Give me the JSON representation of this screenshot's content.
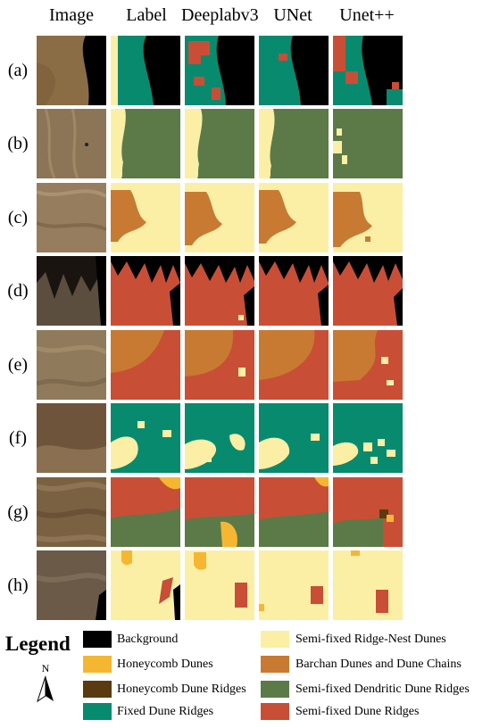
{
  "columns": [
    "Image",
    "Label",
    "Deeplabv3",
    "UNet",
    "Unet++"
  ],
  "rows": [
    "(a)",
    "(b)",
    "(c)",
    "(d)",
    "(e)",
    "(f)",
    "(g)",
    "(h)"
  ],
  "legend": {
    "title": "Legend",
    "north_label": "N",
    "items": [
      {
        "label": "Background",
        "color": "#000000"
      },
      {
        "label": "Honeycomb Dunes",
        "color": "#f5b731"
      },
      {
        "label": "Honeycomb Dune Ridges",
        "color": "#5a3a10"
      },
      {
        "label": "Fixed Dune Ridges",
        "color": "#088a6e"
      },
      {
        "label": "Semi-fixed Ridge-Nest Dunes",
        "color": "#fbefa6"
      },
      {
        "label": "Barchan Dunes and Dune Chains",
        "color": "#c87a32"
      },
      {
        "label": "Semi-fixed Dendritic Dune Ridges",
        "color": "#5b7a48"
      },
      {
        "label": "Semi-fixed Dune Ridges",
        "color": "#c94e36"
      }
    ]
  }
}
